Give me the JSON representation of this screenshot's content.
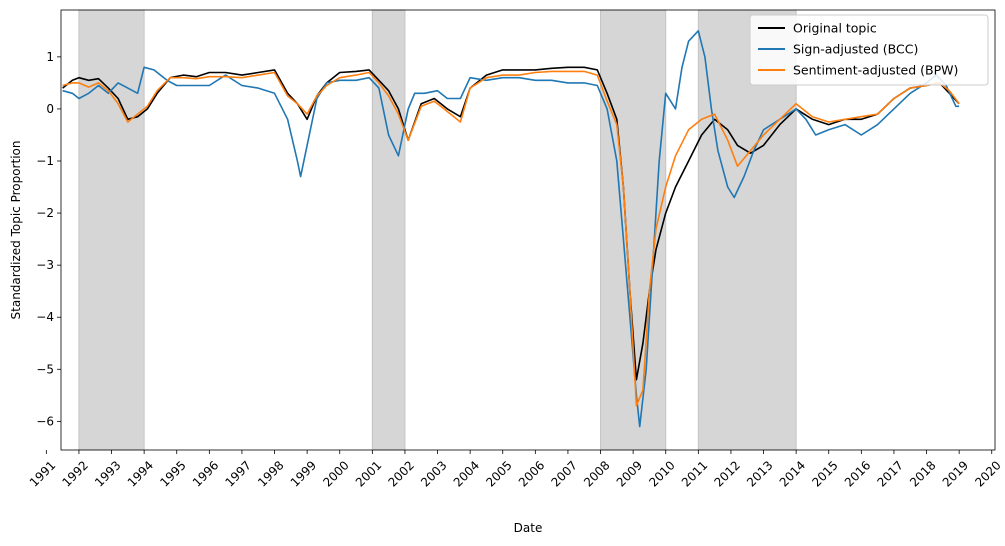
{
  "chart_data": {
    "type": "line",
    "xlabel": "Date",
    "ylabel": "Standardized Topic Proportion",
    "xlim": [
      1991.45,
      2020.1
    ],
    "ylim": [
      -6.55,
      1.9
    ],
    "x_ticks": [
      "1991",
      "1992",
      "1993",
      "1994",
      "1995",
      "1996",
      "1997",
      "1998",
      "1999",
      "2000",
      "2001",
      "2002",
      "2003",
      "2004",
      "2005",
      "2006",
      "2007",
      "2008",
      "2009",
      "2010",
      "2011",
      "2012",
      "2013",
      "2014",
      "2015",
      "2016",
      "2017",
      "2018",
      "2019",
      "2020"
    ],
    "y_ticks": [
      "1",
      "0",
      "−1",
      "−2",
      "−3",
      "−4",
      "−5",
      "−6"
    ],
    "y_tick_values": [
      1,
      0,
      -1,
      -2,
      -3,
      -4,
      -5,
      -6
    ],
    "grid": false,
    "legend_position": "top-right",
    "shaded_periods": [
      [
        1992.0,
        1994.0
      ],
      [
        2001.0,
        2002.0
      ],
      [
        2008.0,
        2010.0
      ],
      [
        2011.0,
        2014.0
      ]
    ],
    "series": [
      {
        "name": "Original topic",
        "color": "#000000",
        "x": [
          1991.5,
          1991.8,
          1992.0,
          1992.3,
          1992.6,
          1992.9,
          1993.2,
          1993.5,
          1993.8,
          1994.1,
          1994.4,
          1994.8,
          1995.2,
          1995.6,
          1996.0,
          1996.5,
          1997.0,
          1997.5,
          1998.0,
          1998.4,
          1998.7,
          1999.0,
          1999.3,
          1999.6,
          2000.0,
          2000.5,
          2000.9,
          2001.2,
          2001.5,
          2001.8,
          2002.1,
          2002.5,
          2002.9,
          2003.3,
          2003.7,
          2004.0,
          2004.5,
          2005.0,
          2005.5,
          2006.0,
          2006.5,
          2007.0,
          2007.5,
          2007.9,
          2008.2,
          2008.5,
          2008.7,
          2008.9,
          2009.1,
          2009.3,
          2009.5,
          2009.7,
          2010.0,
          2010.3,
          2010.7,
          2011.1,
          2011.5,
          2011.9,
          2012.2,
          2012.6,
          2013.0,
          2013.5,
          2014.0,
          2014.5,
          2015.0,
          2015.5,
          2016.0,
          2016.5,
          2017.0,
          2017.5,
          2018.0,
          2018.4,
          2018.7,
          2019.0
        ],
        "y": [
          0.4,
          0.55,
          0.6,
          0.55,
          0.58,
          0.4,
          0.2,
          -0.2,
          -0.15,
          0.0,
          0.3,
          0.6,
          0.65,
          0.62,
          0.7,
          0.7,
          0.65,
          0.7,
          0.75,
          0.3,
          0.1,
          -0.2,
          0.25,
          0.5,
          0.7,
          0.72,
          0.75,
          0.55,
          0.35,
          0.0,
          -0.6,
          0.1,
          0.2,
          0.0,
          -0.15,
          0.4,
          0.65,
          0.75,
          0.75,
          0.75,
          0.78,
          0.8,
          0.8,
          0.75,
          0.3,
          -0.2,
          -1.5,
          -3.5,
          -5.2,
          -4.5,
          -3.5,
          -2.7,
          -2.0,
          -1.5,
          -1.0,
          -0.5,
          -0.2,
          -0.4,
          -0.7,
          -0.85,
          -0.7,
          -0.3,
          0.0,
          -0.2,
          -0.3,
          -0.2,
          -0.2,
          -0.1,
          0.2,
          0.4,
          0.45,
          0.5,
          0.3,
          0.1
        ]
      },
      {
        "name": "Sign-adjusted (BCC)",
        "color": "#1f77b4",
        "x": [
          1991.5,
          1991.8,
          1992.0,
          1992.3,
          1992.6,
          1992.9,
          1993.2,
          1993.5,
          1993.8,
          1994.0,
          1994.3,
          1994.7,
          1995.0,
          1995.5,
          1996.0,
          1996.5,
          1997.0,
          1997.5,
          1998.0,
          1998.4,
          1998.7,
          1998.8,
          1999.0,
          1999.3,
          1999.6,
          2000.0,
          2000.5,
          2000.9,
          2001.2,
          2001.5,
          2001.8,
          2002.1,
          2002.3,
          2002.6,
          2003.0,
          2003.3,
          2003.7,
          2004.0,
          2004.5,
          2005.0,
          2005.5,
          2006.0,
          2006.5,
          2007.0,
          2007.5,
          2007.9,
          2008.2,
          2008.5,
          2008.7,
          2008.9,
          2009.1,
          2009.2,
          2009.4,
          2009.6,
          2009.8,
          2010.0,
          2010.3,
          2010.5,
          2010.7,
          2011.0,
          2011.2,
          2011.4,
          2011.6,
          2011.9,
          2012.1,
          2012.4,
          2012.7,
          2013.0,
          2013.5,
          2014.0,
          2014.3,
          2014.6,
          2015.0,
          2015.5,
          2016.0,
          2016.5,
          2017.0,
          2017.5,
          2018.0,
          2018.3,
          2018.6,
          2018.9,
          2019.0
        ],
        "y": [
          0.35,
          0.3,
          0.2,
          0.3,
          0.45,
          0.3,
          0.5,
          0.4,
          0.3,
          0.8,
          0.75,
          0.55,
          0.45,
          0.45,
          0.45,
          0.65,
          0.45,
          0.4,
          0.3,
          -0.2,
          -1.0,
          -1.3,
          -0.7,
          0.2,
          0.5,
          0.55,
          0.55,
          0.6,
          0.4,
          -0.5,
          -0.9,
          0.0,
          0.3,
          0.3,
          0.35,
          0.2,
          0.2,
          0.6,
          0.55,
          0.6,
          0.6,
          0.55,
          0.55,
          0.5,
          0.5,
          0.45,
          0.0,
          -1.0,
          -2.5,
          -4.0,
          -5.5,
          -6.1,
          -5.0,
          -3.0,
          -1.0,
          0.3,
          0.0,
          0.8,
          1.3,
          1.5,
          1.0,
          0.0,
          -0.8,
          -1.5,
          -1.7,
          -1.3,
          -0.8,
          -0.4,
          -0.2,
          0.0,
          -0.2,
          -0.5,
          -0.4,
          -0.3,
          -0.5,
          -0.3,
          0.0,
          0.3,
          0.5,
          0.65,
          0.45,
          0.05,
          0.05
        ]
      },
      {
        "name": "Sentiment-adjusted (BPW)",
        "color": "#ff7f0e",
        "x": [
          1991.5,
          1991.8,
          1992.0,
          1992.3,
          1992.6,
          1992.9,
          1993.2,
          1993.5,
          1993.8,
          1994.1,
          1994.4,
          1994.8,
          1995.2,
          1995.6,
          1996.0,
          1996.5,
          1997.0,
          1997.5,
          1998.0,
          1998.4,
          1998.7,
          1999.0,
          1999.3,
          1999.6,
          2000.0,
          2000.5,
          2000.9,
          2001.2,
          2001.5,
          2001.8,
          2002.1,
          2002.5,
          2002.9,
          2003.3,
          2003.7,
          2004.0,
          2004.5,
          2005.0,
          2005.5,
          2006.0,
          2006.5,
          2007.0,
          2007.5,
          2007.9,
          2008.2,
          2008.5,
          2008.7,
          2008.9,
          2009.1,
          2009.3,
          2009.5,
          2009.7,
          2010.0,
          2010.3,
          2010.7,
          2011.1,
          2011.5,
          2011.9,
          2012.2,
          2012.6,
          2013.0,
          2013.5,
          2014.0,
          2014.5,
          2015.0,
          2015.5,
          2016.0,
          2016.5,
          2017.0,
          2017.5,
          2018.0,
          2018.4,
          2018.7,
          2019.0
        ],
        "y": [
          0.45,
          0.5,
          0.5,
          0.42,
          0.5,
          0.35,
          0.1,
          -0.25,
          -0.1,
          0.05,
          0.35,
          0.6,
          0.6,
          0.58,
          0.62,
          0.62,
          0.6,
          0.65,
          0.7,
          0.25,
          0.1,
          -0.1,
          0.25,
          0.45,
          0.6,
          0.65,
          0.7,
          0.5,
          0.25,
          -0.1,
          -0.6,
          0.05,
          0.15,
          -0.05,
          -0.25,
          0.4,
          0.6,
          0.65,
          0.65,
          0.7,
          0.72,
          0.72,
          0.72,
          0.65,
          0.15,
          -0.3,
          -1.5,
          -3.5,
          -5.7,
          -5.4,
          -3.5,
          -2.3,
          -1.5,
          -0.9,
          -0.4,
          -0.2,
          -0.1,
          -0.6,
          -1.1,
          -0.8,
          -0.5,
          -0.2,
          0.1,
          -0.15,
          -0.25,
          -0.2,
          -0.15,
          -0.1,
          0.2,
          0.4,
          0.45,
          0.5,
          0.35,
          0.1
        ]
      }
    ]
  }
}
